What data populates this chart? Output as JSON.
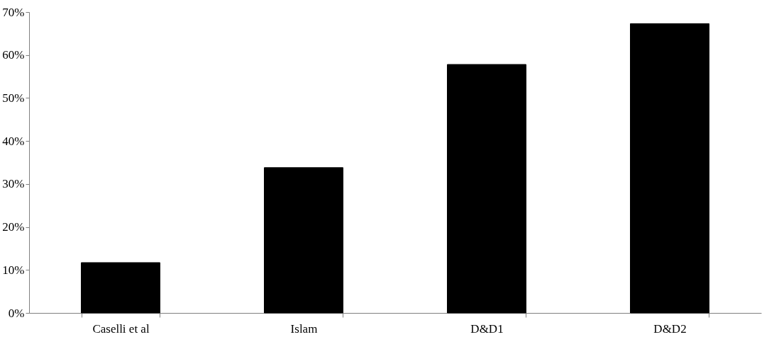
{
  "chart_data": {
    "type": "bar",
    "categories": [
      "Caselli  et  al",
      "Islam",
      "D&D1",
      "D&D2"
    ],
    "values": [
      11.7,
      33.8,
      57.8,
      67.3
    ],
    "color": "#000000",
    "ylim": [
      0,
      70
    ],
    "yticks": [
      {
        "value": 0,
        "label": "0%"
      },
      {
        "value": 10,
        "label": "10%"
      },
      {
        "value": 20,
        "label": "20%"
      },
      {
        "value": 30,
        "label": "30%"
      },
      {
        "value": 40,
        "label": "40%"
      },
      {
        "value": 50,
        "label": "50%"
      },
      {
        "value": 60,
        "label": "60%"
      },
      {
        "value": 70,
        "label": "70%"
      }
    ],
    "grid": false
  }
}
